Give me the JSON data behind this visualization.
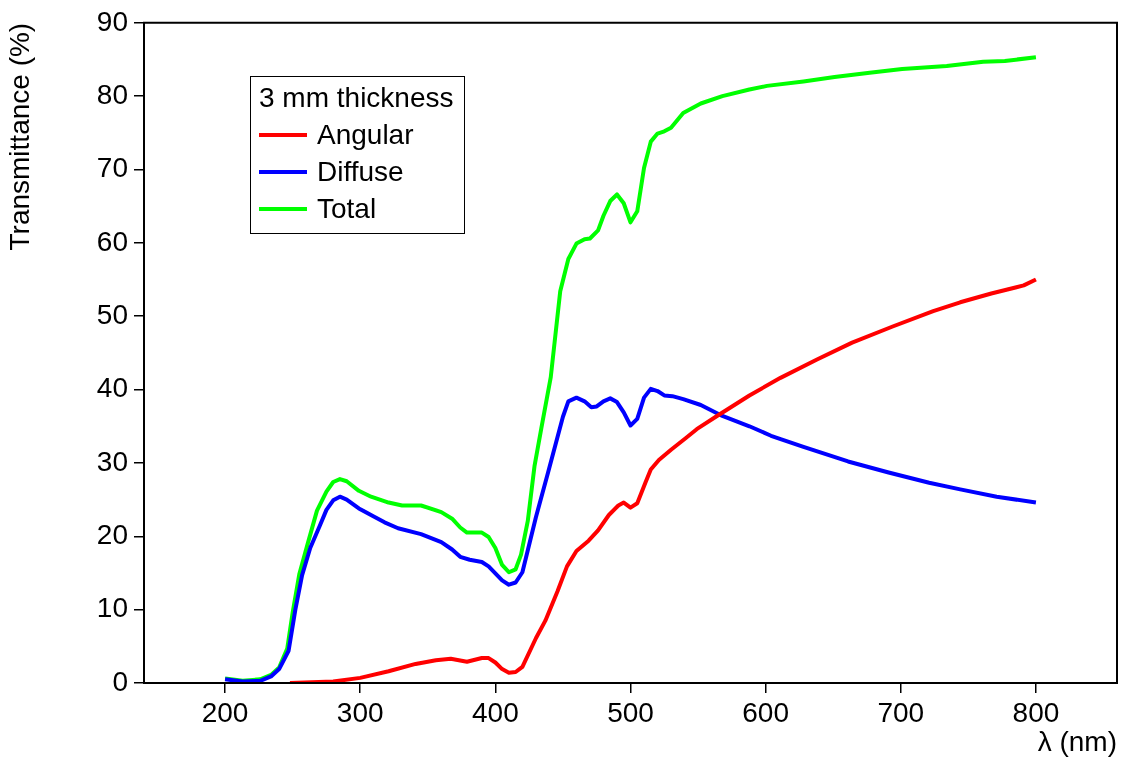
{
  "chart_data": {
    "type": "line",
    "xlabel": "λ (nm)",
    "ylabel": "Transmittance (%)",
    "legend_title": "3 mm thickness",
    "legend": "top left",
    "grid": false,
    "marker": "none",
    "line_style": "solid",
    "xlim": [
      140,
      860
    ],
    "xticks": [
      200,
      300,
      400,
      500,
      600,
      700,
      800
    ],
    "ylim": [
      0,
      90
    ],
    "yticks": [
      0,
      10,
      20,
      30,
      40,
      50,
      60,
      70,
      80,
      90
    ],
    "series": [
      {
        "name": "Angular",
        "color": "#ff0000",
        "x": [
          248,
          280,
          300,
          321,
          341,
          356,
          367,
          379,
          390,
          395,
          400,
          405,
          410,
          415,
          420,
          430,
          437,
          446,
          453,
          460,
          469,
          476,
          484,
          491,
          495,
          500,
          505,
          511,
          515,
          521,
          530,
          541,
          549,
          564,
          588,
          611,
          638,
          664,
          694,
          724,
          744,
          767,
          791,
          800
        ],
        "values": [
          0,
          0.2,
          0.7,
          1.6,
          2.6,
          3.1,
          3.3,
          2.9,
          3.4,
          3.4,
          2.8,
          1.9,
          1.4,
          1.5,
          2.2,
          6.1,
          8.5,
          12.5,
          15.9,
          18,
          19.4,
          20.8,
          22.9,
          24.2,
          24.6,
          23.9,
          24.5,
          27.3,
          29.1,
          30.4,
          31.8,
          33.4,
          34.6,
          36.4,
          39.2,
          41.6,
          44.1,
          46.4,
          48.6,
          50.7,
          51.9,
          53.1,
          54.2,
          55
        ]
      },
      {
        "name": "Diffuse",
        "color": "#0000ff",
        "x": [
          200,
          213,
          226,
          234,
          240,
          247,
          252,
          257,
          263,
          270,
          275,
          280,
          285,
          290,
          299,
          310,
          318,
          328,
          345,
          360,
          368,
          374,
          381,
          390,
          395,
          405,
          410,
          415,
          420,
          430,
          439,
          450,
          454,
          460,
          466,
          471,
          475,
          480,
          485,
          490,
          495,
          500,
          505,
          510,
          515,
          520,
          525,
          531,
          539,
          552,
          568,
          588,
          604,
          628,
          661,
          691,
          721,
          744,
          771,
          800
        ],
        "values": [
          0.5,
          0.2,
          0.3,
          0.9,
          1.9,
          4.4,
          10,
          14.7,
          18.4,
          21.4,
          23.6,
          24.9,
          25.4,
          25,
          23.8,
          22.7,
          21.9,
          21.1,
          20.3,
          19.2,
          18.2,
          17.2,
          16.8,
          16.5,
          15.9,
          14,
          13.4,
          13.7,
          15.1,
          22.6,
          28.7,
          36.3,
          38.4,
          38.9,
          38.4,
          37.6,
          37.7,
          38.4,
          38.8,
          38.3,
          36.9,
          35.1,
          36,
          38.9,
          40.1,
          39.8,
          39.2,
          39.1,
          38.7,
          37.9,
          36.4,
          35,
          33.7,
          32.2,
          30.2,
          28.7,
          27.3,
          26.4,
          25.4,
          24.6
        ]
      },
      {
        "name": "Total",
        "color": "#00ff00",
        "x": [
          200,
          213,
          226,
          234,
          240,
          246,
          250,
          255,
          261,
          268,
          275,
          280,
          285,
          290,
          299,
          308,
          321,
          331,
          345,
          360,
          368,
          374,
          379,
          390,
          395,
          400,
          405,
          410,
          415,
          419,
          424,
          429,
          434,
          441,
          448,
          454,
          460,
          466,
          470,
          476,
          480,
          485,
          490,
          495,
          500,
          505,
          510,
          515,
          520,
          525,
          530,
          539,
          552,
          568,
          588,
          601,
          628,
          651,
          677,
          701,
          734,
          761,
          777,
          800
        ],
        "values": [
          0.6,
          0.3,
          0.5,
          1.1,
          2.1,
          4.7,
          9.6,
          14.9,
          18.9,
          23.5,
          26.1,
          27.4,
          27.8,
          27.5,
          26.2,
          25.4,
          24.6,
          24.2,
          24.2,
          23.3,
          22.4,
          21.2,
          20.5,
          20.5,
          19.9,
          18.4,
          16.1,
          15.1,
          15.5,
          17.5,
          22.1,
          29.6,
          34.7,
          41.7,
          53.4,
          57.8,
          59.9,
          60.5,
          60.6,
          61.7,
          63.7,
          65.7,
          66.6,
          65.4,
          62.8,
          64.3,
          70.2,
          73.8,
          74.9,
          75.2,
          75.7,
          77.7,
          79,
          80,
          80.9,
          81.4,
          82,
          82.6,
          83.2,
          83.7,
          84.1,
          84.7,
          84.8,
          85.3
        ]
      }
    ]
  }
}
